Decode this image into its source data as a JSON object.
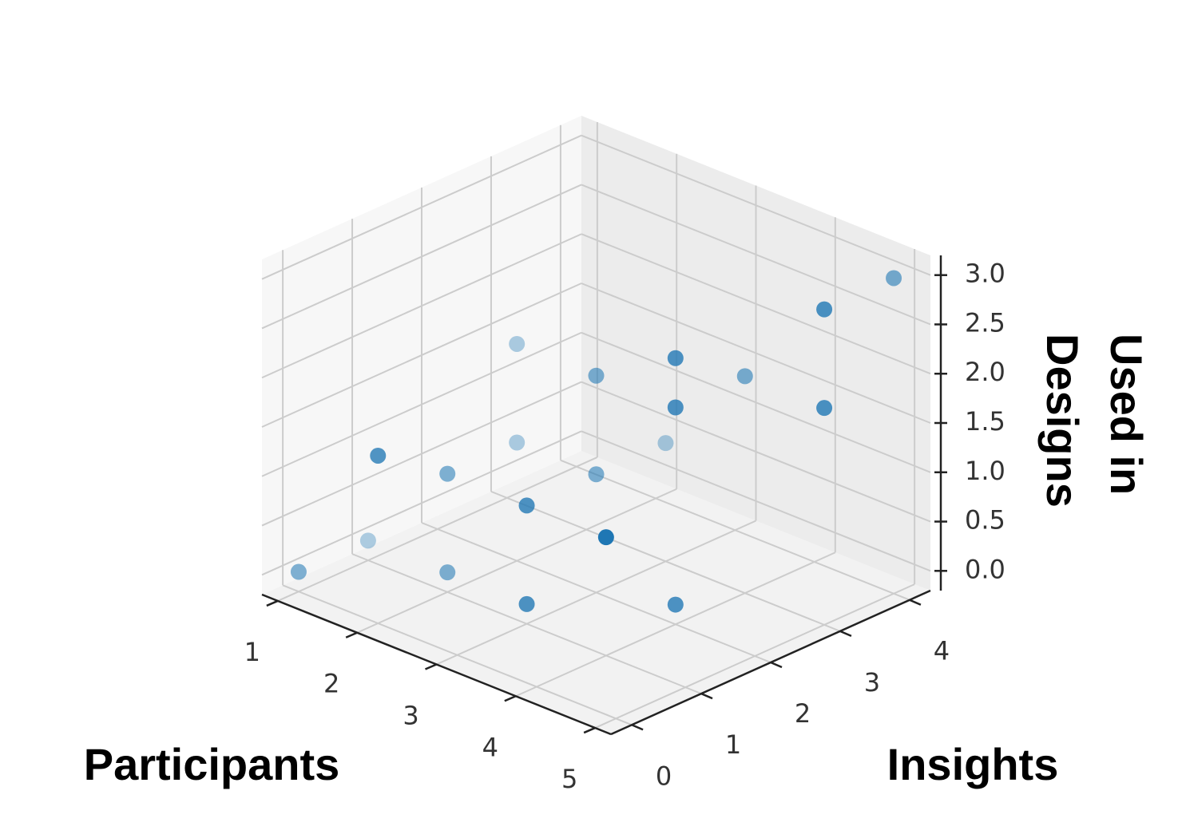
{
  "chart_data": {
    "type": "scatter3d",
    "xlabel": "Participants",
    "ylabel": "Insights",
    "zlabel": "Used in Designs",
    "x": [
      1,
      1,
      2,
      3,
      4,
      2,
      2,
      3,
      2,
      2,
      3,
      3,
      4,
      4,
      3,
      4,
      4,
      5,
      5,
      5
    ],
    "y": [
      0,
      1,
      1,
      1,
      2,
      0,
      1,
      1,
      2,
      2,
      2,
      2,
      1,
      2,
      3,
      2,
      3,
      3,
      3,
      4
    ],
    "z": [
      0,
      0,
      0,
      0,
      0,
      1.5,
      1,
      1,
      1,
      2,
      2,
      1,
      1,
      2.5,
      1,
      2,
      2,
      2,
      3,
      3
    ],
    "color": "#1f77b4",
    "xlim": [
      0.8,
      5.2
    ],
    "ylim": [
      -0.3,
      4.3
    ],
    "zlim": [
      -0.2,
      3.2
    ],
    "xticks": [
      1,
      2,
      3,
      4,
      5
    ],
    "yticks": [
      0,
      1,
      2,
      3,
      4
    ],
    "zticks": [
      {
        "value": 0,
        "label": "0.0"
      },
      {
        "value": 0.5,
        "label": "0.5"
      },
      {
        "value": 1,
        "label": "1.0"
      },
      {
        "value": 1.5,
        "label": "1.5"
      },
      {
        "value": 2,
        "label": "2.0"
      },
      {
        "value": 2.5,
        "label": "2.5"
      },
      {
        "value": 3,
        "label": "3.0"
      }
    ],
    "grid": true
  }
}
